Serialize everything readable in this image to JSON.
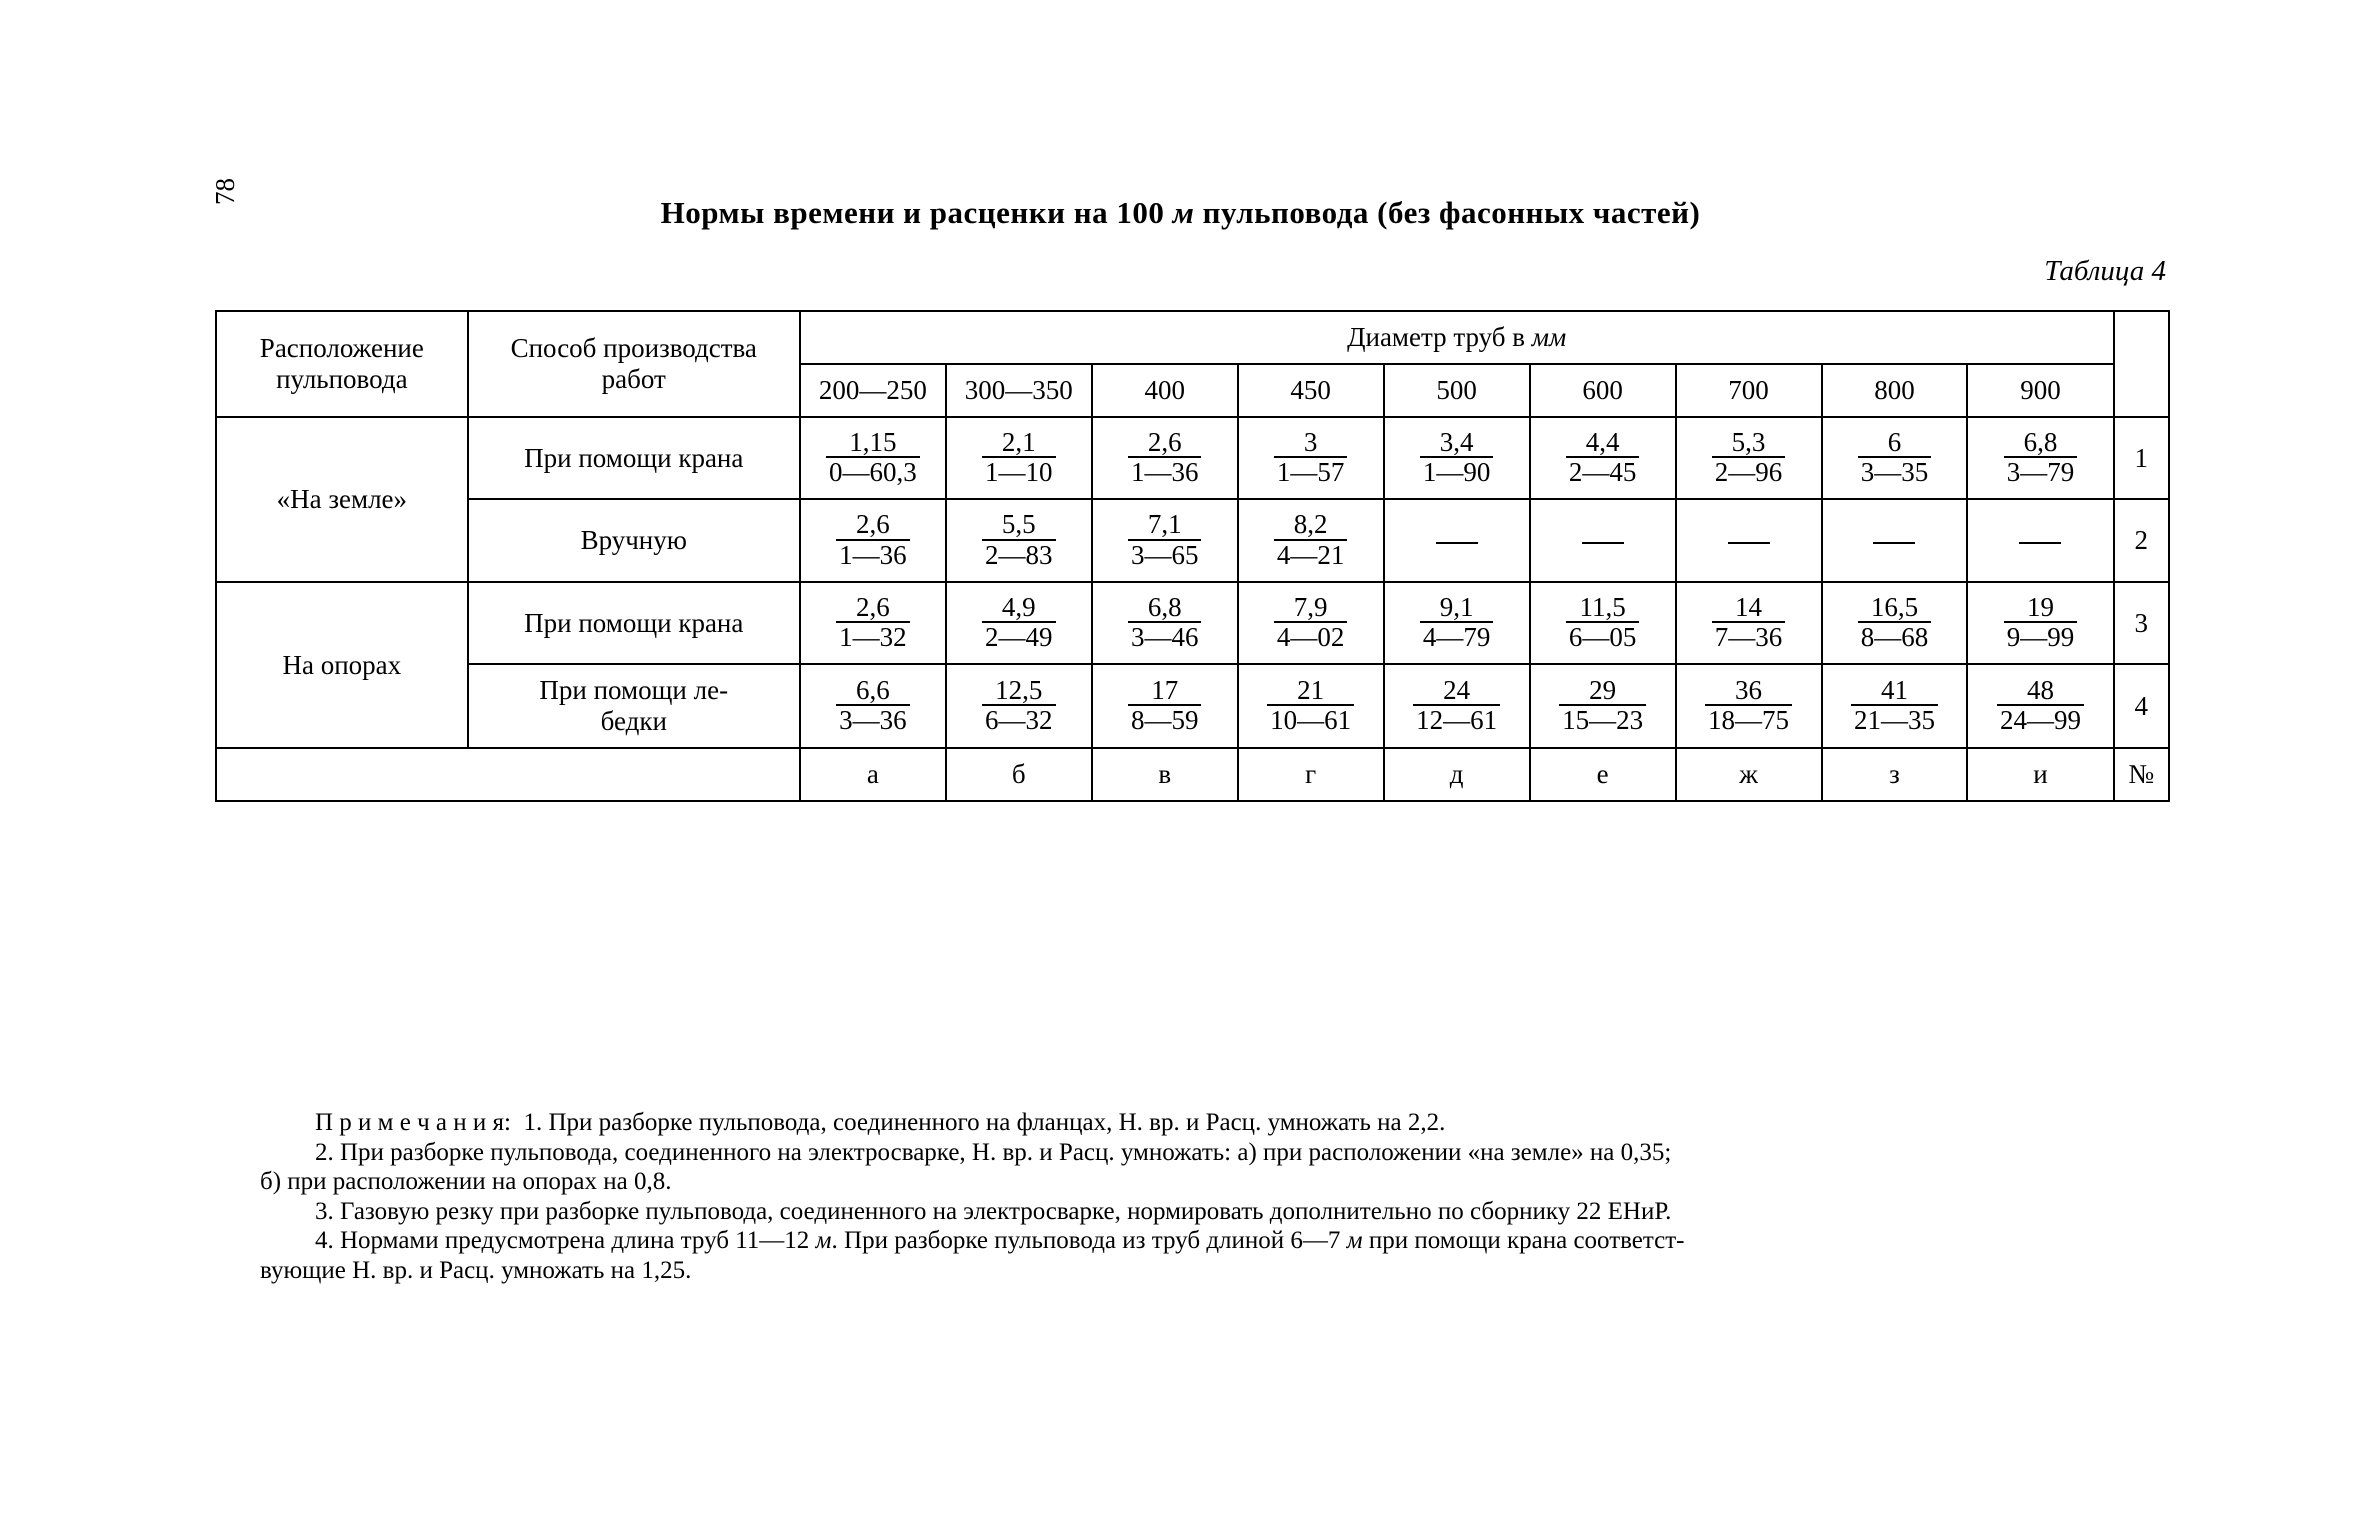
{
  "page_number": "78",
  "title": "Нормы времени и расценки на 100 м пульповода (без фасонных частей)",
  "table_label": "Таблица 4",
  "headers": {
    "location": "Расположение пульповода",
    "method": "Способ производства работ",
    "diameter": "Диаметр труб в мм",
    "diam_cols": [
      "200—250",
      "300—350",
      "400",
      "450",
      "500",
      "600",
      "700",
      "800",
      "900"
    ]
  },
  "locations": [
    "«На земле»",
    "На опорах"
  ],
  "methods": {
    "crane": "При помощи крана",
    "manual": "Вручную",
    "winch1": "При помощи ле-",
    "winch2": "бедки"
  },
  "rows": [
    {
      "n": "1",
      "cells": [
        [
          "1,15",
          "0—60,3"
        ],
        [
          "2,1",
          "1—10"
        ],
        [
          "2,6",
          "1—36"
        ],
        [
          "3",
          "1—57"
        ],
        [
          "3,4",
          "1—90"
        ],
        [
          "4,4",
          "2—45"
        ],
        [
          "5,3",
          "2—96"
        ],
        [
          "6",
          "3—35"
        ],
        [
          "6,8",
          "3—79"
        ]
      ]
    },
    {
      "n": "2",
      "cells": [
        [
          "2,6",
          "1—36"
        ],
        [
          "5,5",
          "2—83"
        ],
        [
          "7,1",
          "3—65"
        ],
        [
          "8,2",
          "4—21"
        ],
        null,
        null,
        null,
        null,
        null
      ]
    },
    {
      "n": "3",
      "cells": [
        [
          "2,6",
          "1—32"
        ],
        [
          "4,9",
          "2—49"
        ],
        [
          "6,8",
          "3—46"
        ],
        [
          "7,9",
          "4—02"
        ],
        [
          "9,1",
          "4—79"
        ],
        [
          "11,5",
          "6—05"
        ],
        [
          "14",
          "7—36"
        ],
        [
          "16,5",
          "8—68"
        ],
        [
          "19",
          "9—99"
        ]
      ]
    },
    {
      "n": "4",
      "cells": [
        [
          "6,6",
          "3—36"
        ],
        [
          "12,5",
          "6—32"
        ],
        [
          "17",
          "8—59"
        ],
        [
          "21",
          "10—61"
        ],
        [
          "24",
          "12—61"
        ],
        [
          "29",
          "15—23"
        ],
        [
          "36",
          "18—75"
        ],
        [
          "41",
          "21—35"
        ],
        [
          "48",
          "24—99"
        ]
      ]
    }
  ],
  "footer_letters": [
    "а",
    "б",
    "в",
    "г",
    "д",
    "е",
    "ж",
    "з",
    "и"
  ],
  "footer_num": "№",
  "notes": {
    "label": "П р и м е ч а н и я:",
    "n1": "1. При разборке пульповода, соединенного на фланцах, Н. вр. и Расц. умножать на 2,2.",
    "n2a": "2. При разборке пульповода, соединенного на электросварке, Н. вр. и Расц. умножать: а) при расположении «на земле» на 0,35;",
    "n2b": "б) при расположении на опорах на 0,8.",
    "n3": "3. Газовую резку при разборке пульповода, соединенного на электросварке, нормировать дополнительно по сборнику 22 ЕНиР.",
    "n4a": "4. Нормами предусмотрена длина труб 11—12 м. При разборке пульповода из труб длиной 6—7 м при помощи крана соответст-",
    "n4b": "вующие Н. вр. и Расц. умножать на 1,25."
  }
}
